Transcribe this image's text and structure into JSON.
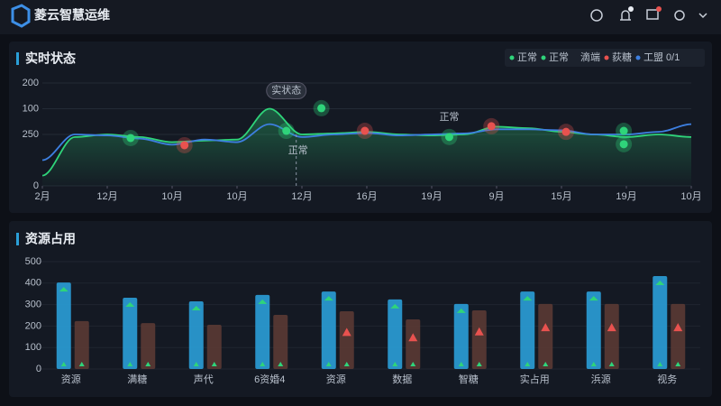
{
  "header": {
    "title": "菱云智慧运维"
  },
  "chart_data": [
    {
      "type": "line",
      "title": "实时状态",
      "legend_extra": "滴端",
      "x": [
        0,
        0.5,
        1,
        1.5,
        2,
        2.5,
        3,
        3.5,
        4,
        4.5,
        5,
        5.5,
        6,
        6.5,
        7,
        7.5,
        8,
        8.5,
        9,
        9.5,
        10
      ],
      "xlim": [
        0,
        10
      ],
      "xticks": [
        {
          "value": 0,
          "label": "2月"
        },
        {
          "value": 1,
          "label": "12月"
        },
        {
          "value": 2,
          "label": "10月"
        },
        {
          "value": 3,
          "label": "10月"
        },
        {
          "value": 4,
          "label": "12月"
        },
        {
          "value": 5,
          "label": "16月"
        },
        {
          "value": 6,
          "label": "19月"
        },
        {
          "value": 7,
          "label": "9月"
        },
        {
          "value": 8,
          "label": "15月"
        },
        {
          "value": 9,
          "label": "19月"
        },
        {
          "value": 10,
          "label": "10月"
        }
      ],
      "ylim": [
        0,
        200
      ],
      "yticks": [
        0,
        {
          "value": 100,
          "label": "250"
        },
        {
          "value": 150,
          "label": "100"
        },
        200
      ],
      "series": [
        {
          "name": "正常",
          "color": "#2fd47a",
          "values": [
            20,
            95,
            100,
            95,
            85,
            88,
            90,
            150,
            100,
            102,
            105,
            100,
            98,
            100,
            115,
            112,
            105,
            100,
            95,
            100,
            95
          ]
        },
        {
          "name": "工盟 0/1",
          "color": "#3d7fe0",
          "values": [
            50,
            100,
            98,
            92,
            80,
            90,
            85,
            120,
            95,
            100,
            103,
            98,
            100,
            102,
            110,
            110,
            108,
            100,
            100,
            105,
            120
          ]
        },
        {
          "name": "正常",
          "color": "#2fd47a",
          "kind": "points",
          "x": [
            1.36,
            4.3,
            3.76,
            6.27,
            8.96,
            8.96
          ],
          "values": [
            93,
            151,
            107,
            95,
            107,
            81
          ]
        },
        {
          "name": "荻糖",
          "color": "#e8524f",
          "kind": "points",
          "x": [
            2.19,
            4.97,
            6.92,
            8.07
          ],
          "values": [
            79,
            107,
            116,
            105
          ]
        }
      ],
      "annotations": [
        {
          "text": "实状态",
          "x": 3.76,
          "y": 185
        },
        {
          "text": "正常",
          "x": 3.94,
          "y": 68
        },
        {
          "text": "正常",
          "x": 6.27,
          "y": 133
        }
      ]
    },
    {
      "type": "bar",
      "title": "资源占用",
      "categories": [
        "资源",
        "满糖",
        "声代",
        "6资婚4",
        "资源",
        "数据",
        "智糖",
        "实占用",
        "浜源",
        "视务"
      ],
      "ylim": [
        0,
        500
      ],
      "yticks": [
        0,
        100,
        200,
        300,
        400,
        500
      ],
      "series": [
        {
          "color": "#2a9fd8",
          "values": [
            403,
            332,
            315,
            345,
            361,
            324,
            303,
            361,
            361,
            433
          ]
        },
        {
          "color": "#5a3a34",
          "values": [
            223,
            214,
            206,
            252,
            269,
            231,
            273,
            303,
            303,
            303
          ]
        }
      ]
    }
  ]
}
